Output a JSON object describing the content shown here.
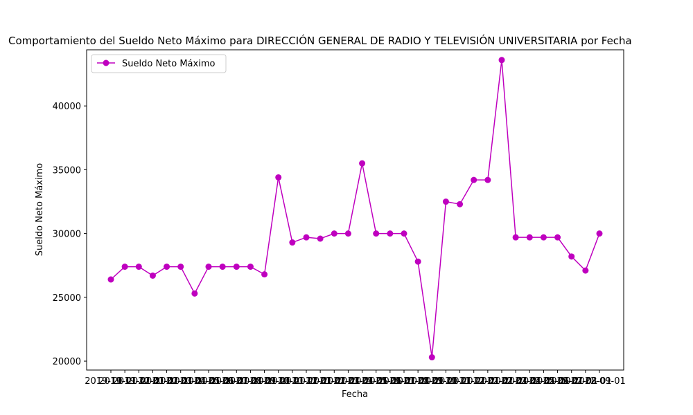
{
  "chart_data": {
    "type": "line",
    "title": "Comportamiento del Sueldo Neto Máximo para DIRECCIÓN GENERAL DE RADIO Y TELEVISIÓN UNIVERSITARIA por Fecha",
    "xlabel": "Fecha",
    "ylabel": "Sueldo Neto Máximo",
    "ylim": [
      19300,
      44400
    ],
    "yticks": [
      20000,
      25000,
      30000,
      35000,
      40000
    ],
    "legend": "top-left",
    "grid": false,
    "color": "#bf00bf",
    "x": [
      "2019-10-01",
      "2019-11-01",
      "2019-12-01",
      "2020-01-01",
      "2020-02-01",
      "2020-03-01",
      "2020-04-01",
      "2020-05-01",
      "2020-06-01",
      "2020-07-01",
      "2020-08-01",
      "2020-09-01",
      "2020-10-01",
      "2020-11-01",
      "2020-12-01",
      "2021-01-01",
      "2021-02-01",
      "2021-03-01",
      "2021-04-01",
      "2021-05-01",
      "2021-06-01",
      "2021-07-01",
      "2021-08-01",
      "2021-09-01",
      "2021-10-01",
      "2021-11-01",
      "2021-12-01",
      "2022-01-01",
      "2022-02-01",
      "2022-03-01",
      "2022-04-01",
      "2022-05-01",
      "2022-06-01",
      "2022-07-01",
      "2022-08-01",
      "2022-09-01"
    ],
    "series": [
      {
        "name": "Sueldo Neto Máximo",
        "values": [
          26400,
          27400,
          27400,
          26700,
          27400,
          27400,
          25300,
          27400,
          27400,
          27400,
          27400,
          26800,
          34400,
          29300,
          29700,
          29600,
          30000,
          30000,
          35500,
          30000,
          30000,
          30000,
          27800,
          20300,
          32500,
          32300,
          34200,
          34200,
          43600,
          29700,
          29700,
          29700,
          29700,
          28200,
          27100,
          30000
        ]
      }
    ]
  }
}
